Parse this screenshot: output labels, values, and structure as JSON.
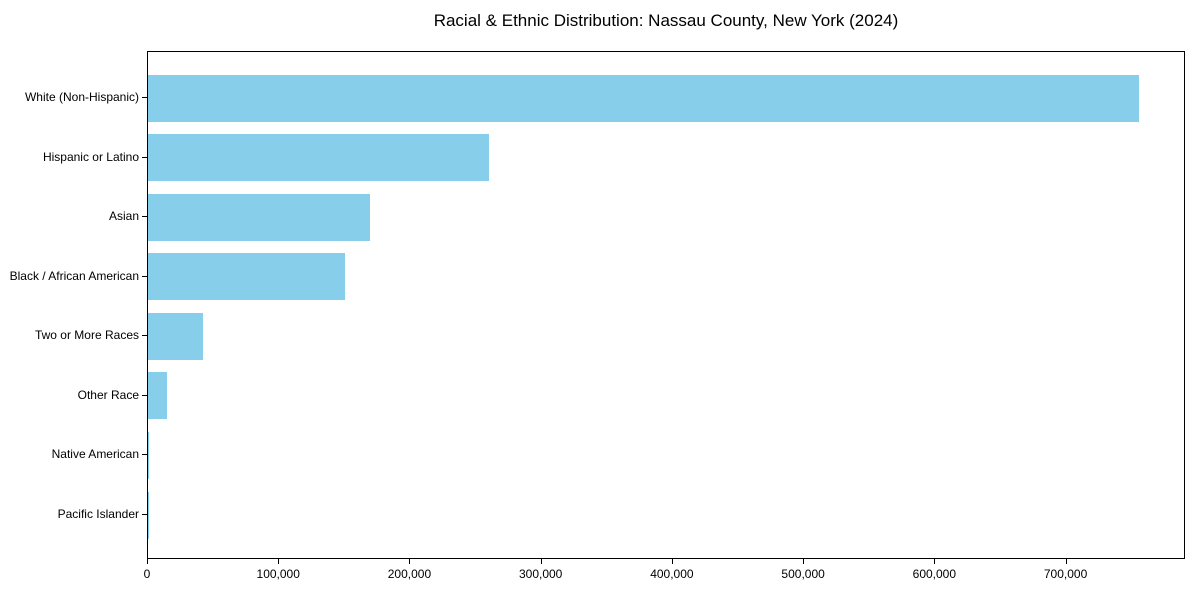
{
  "chart_data": {
    "type": "bar",
    "orientation": "horizontal",
    "title": "Racial & Ethnic Distribution: Nassau County, New York (2024)",
    "categories": [
      "White (Non-Hispanic)",
      "Hispanic or Latino",
      "Asian",
      "Black / African American",
      "Two or More Races",
      "Other Race",
      "Native American",
      "Pacific Islander"
    ],
    "values": [
      755000,
      260000,
      169000,
      150000,
      42000,
      14500,
      400,
      150
    ],
    "xlabel": "",
    "ylabel": "",
    "xlim": [
      0,
      791000
    ],
    "xticks": [
      0,
      100000,
      200000,
      300000,
      400000,
      500000,
      600000,
      700000
    ],
    "xtick_labels": [
      "0",
      "100,000",
      "200,000",
      "300,000",
      "400,000",
      "500,000",
      "600,000",
      "700,000"
    ],
    "grid": false,
    "legend": "none",
    "bar_color": "#87CEEB",
    "axis_color": "#000000",
    "text_color": "#000000",
    "background_color": "#FFFFFF"
  }
}
